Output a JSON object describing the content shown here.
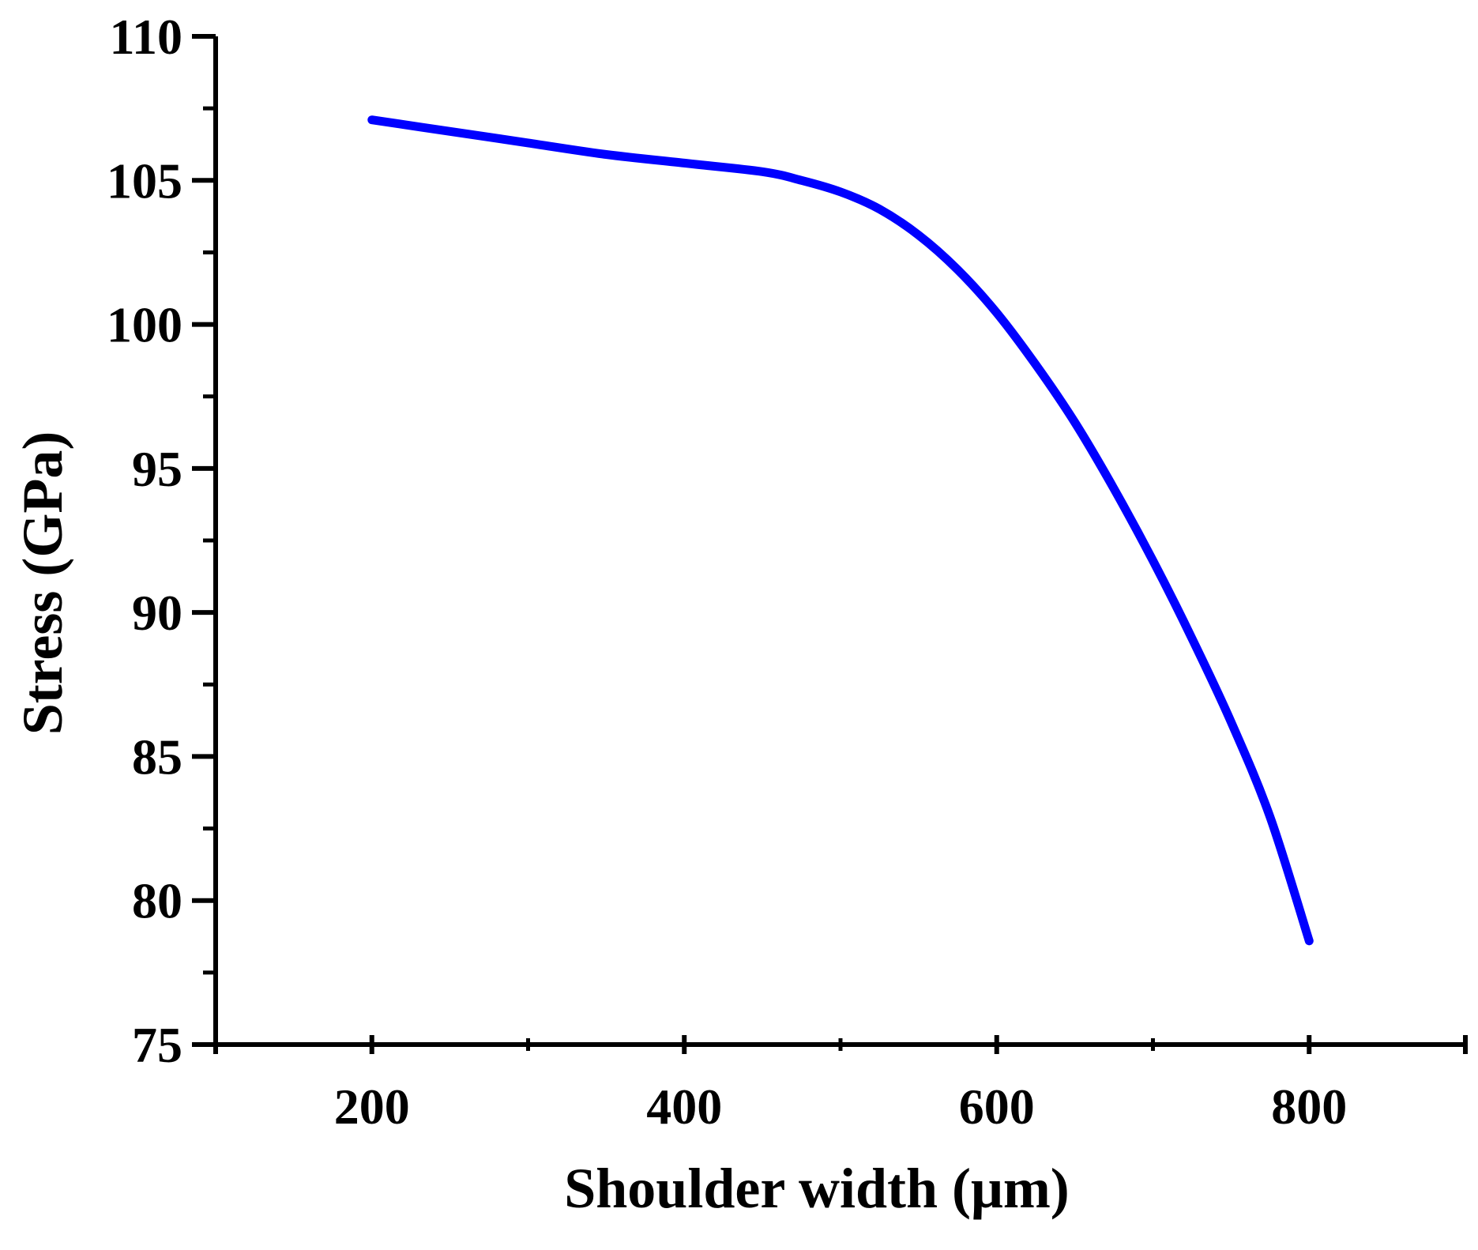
{
  "chart_data": {
    "type": "line",
    "title": "",
    "xlabel": "Shoulder width (μm)",
    "ylabel": "Stress (GPa)",
    "xlim": [
      100,
      900
    ],
    "ylim": [
      75,
      110
    ],
    "x_ticks": [
      200,
      400,
      600,
      800
    ],
    "x_tick_labels": [
      "200",
      "400",
      "600",
      "800"
    ],
    "x_minor_ticks": [
      300,
      500,
      700
    ],
    "y_ticks": [
      75,
      80,
      85,
      90,
      95,
      100,
      105,
      110
    ],
    "y_tick_labels": [
      "75",
      "80",
      "85",
      "90",
      "95",
      "100",
      "105",
      "110"
    ],
    "y_minor_ticks": [
      77.5,
      82.5,
      87.5,
      92.5,
      97.5,
      102.5,
      107.5
    ],
    "grid": false,
    "legend": "none",
    "series": [
      {
        "color": "#0000ff",
        "x": [
          200,
          250,
          300,
          350,
          400,
          450,
          475,
          500,
          525,
          550,
          575,
          600,
          625,
          650,
          675,
          700,
          725,
          750,
          775,
          800
        ],
        "y": [
          107.1,
          106.7,
          106.3,
          105.9,
          105.6,
          105.3,
          105.0,
          104.6,
          104.0,
          103.1,
          101.9,
          100.4,
          98.6,
          96.6,
          94.3,
          91.8,
          89.1,
          86.2,
          82.9,
          78.6
        ]
      }
    ]
  }
}
